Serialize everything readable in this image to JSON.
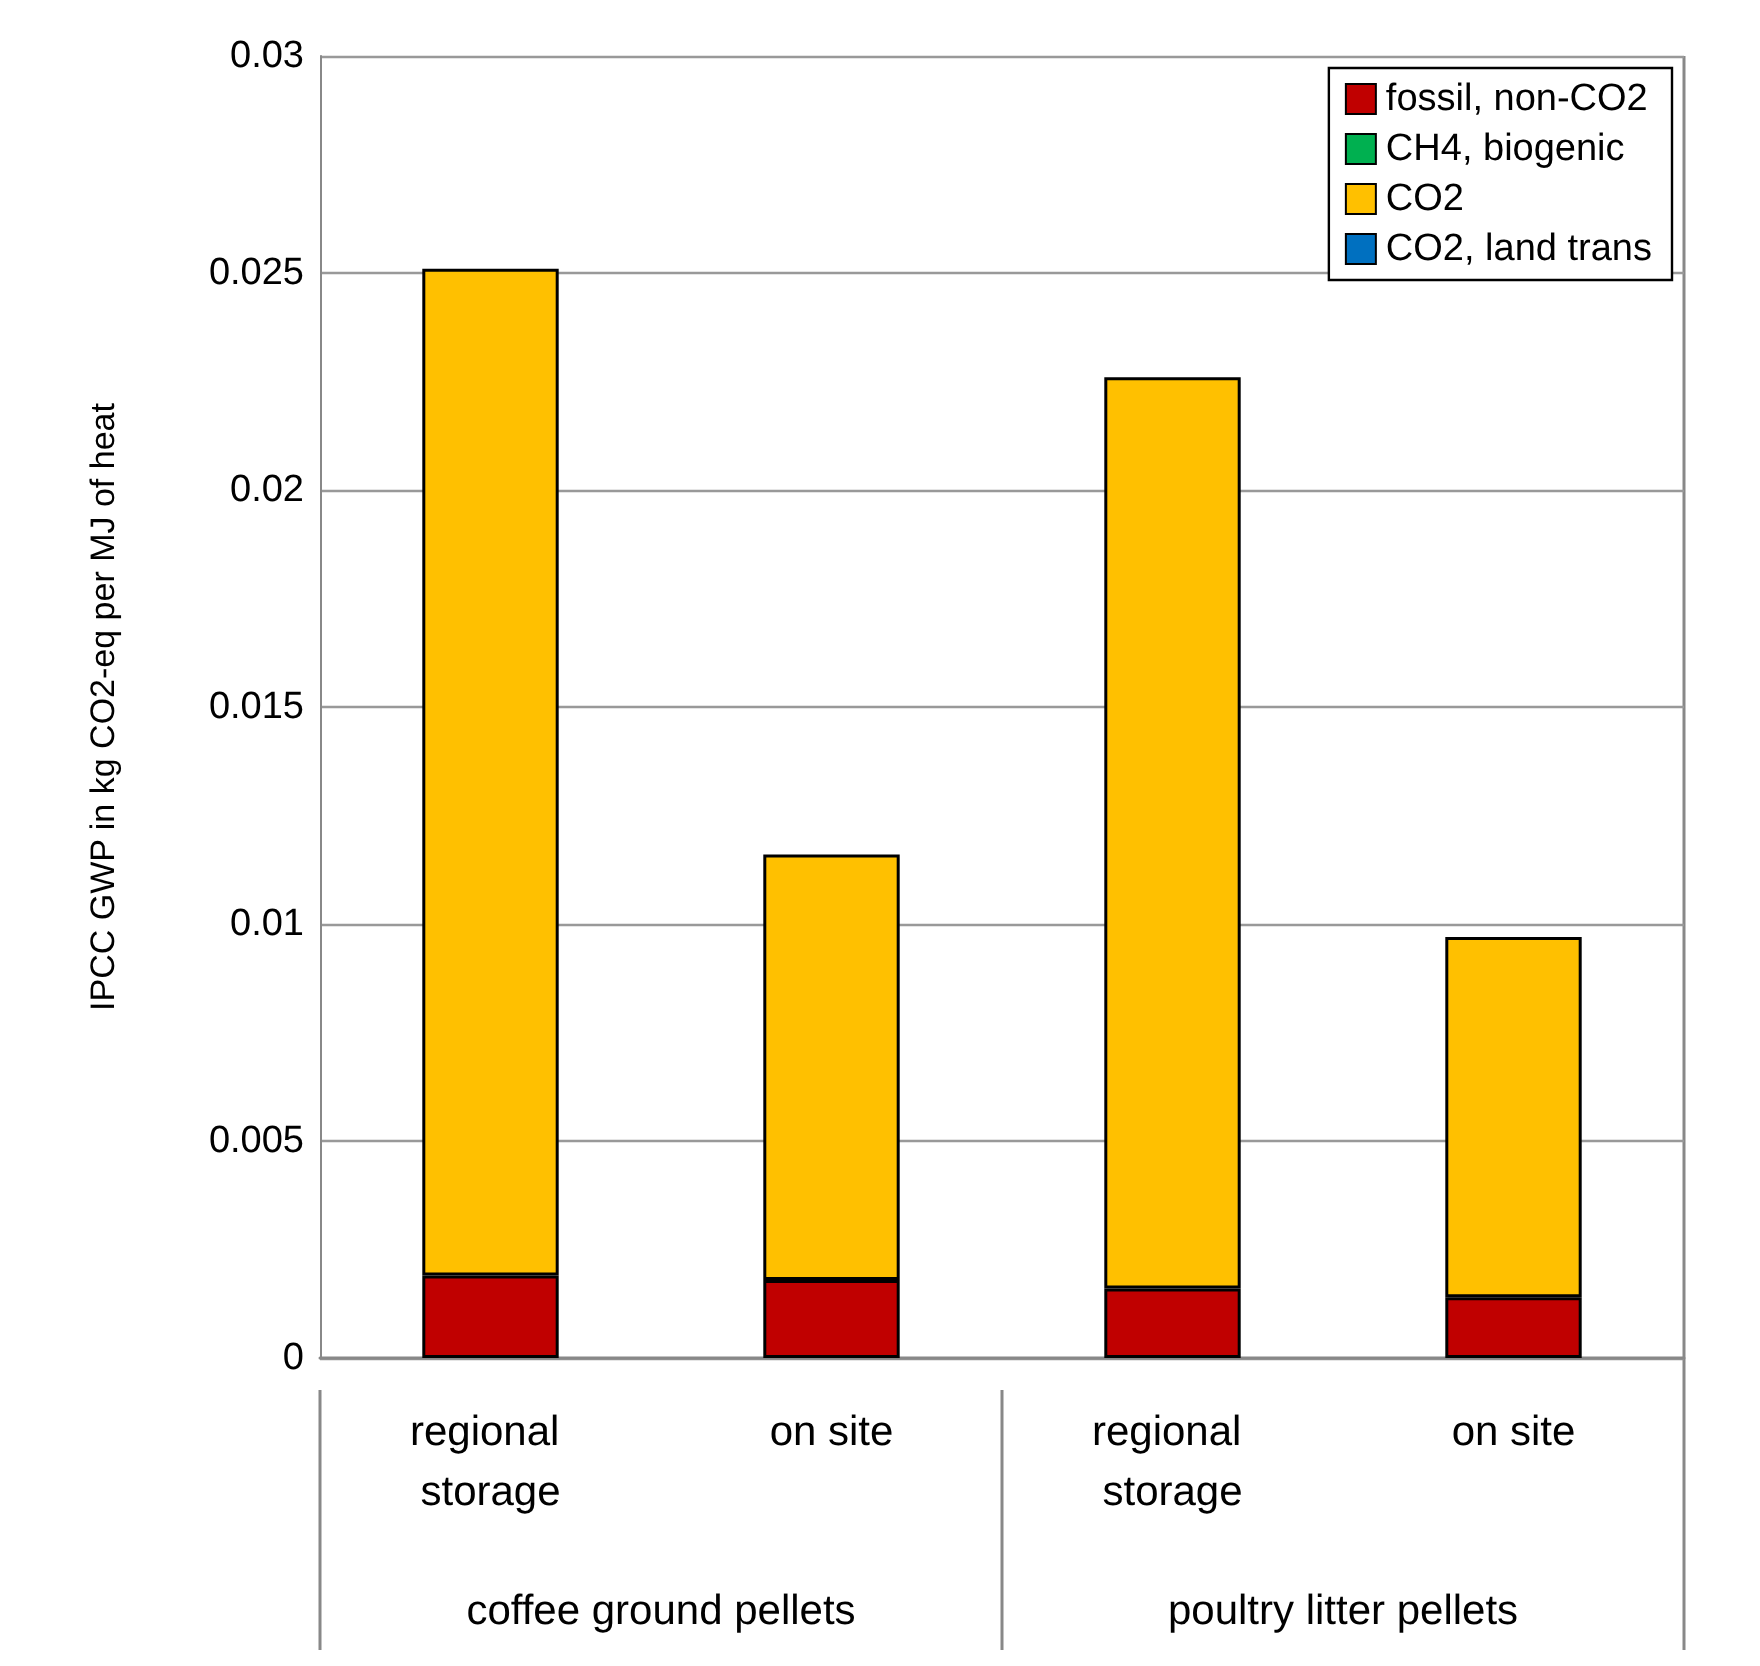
{
  "chart_data": {
    "type": "bar",
    "stacked": true,
    "ylabel": "IPCC GWP in kg CO2-eq per MJ of heat",
    "categories": [
      "regional storage",
      "on site",
      "regional storage",
      "on site"
    ],
    "annotations": [
      "coffee ground pellets",
      "poultry litter pellets"
    ],
    "series": [
      {
        "name": "fossil, non-CO2",
        "color": "#c00000",
        "values": [
          0.0019,
          0.0018,
          0.0016,
          0.0014
        ]
      },
      {
        "name": "CH4, biogenic",
        "color": "#00b050",
        "values": [
          0,
          0,
          0,
          0
        ]
      },
      {
        "name": "CO2",
        "color": "#ffc000",
        "values": [
          0.0232,
          0.0098,
          0.021,
          0.0083
        ]
      },
      {
        "name": "CO2, land trans",
        "color": "#0070c0",
        "values": [
          0,
          0,
          0,
          0
        ]
      }
    ],
    "ylim": [
      0,
      0.03
    ],
    "yticks": [
      0,
      0.005,
      0.01,
      0.015,
      0.02,
      0.025,
      0.03
    ],
    "grid": "y",
    "legend": "top right"
  }
}
